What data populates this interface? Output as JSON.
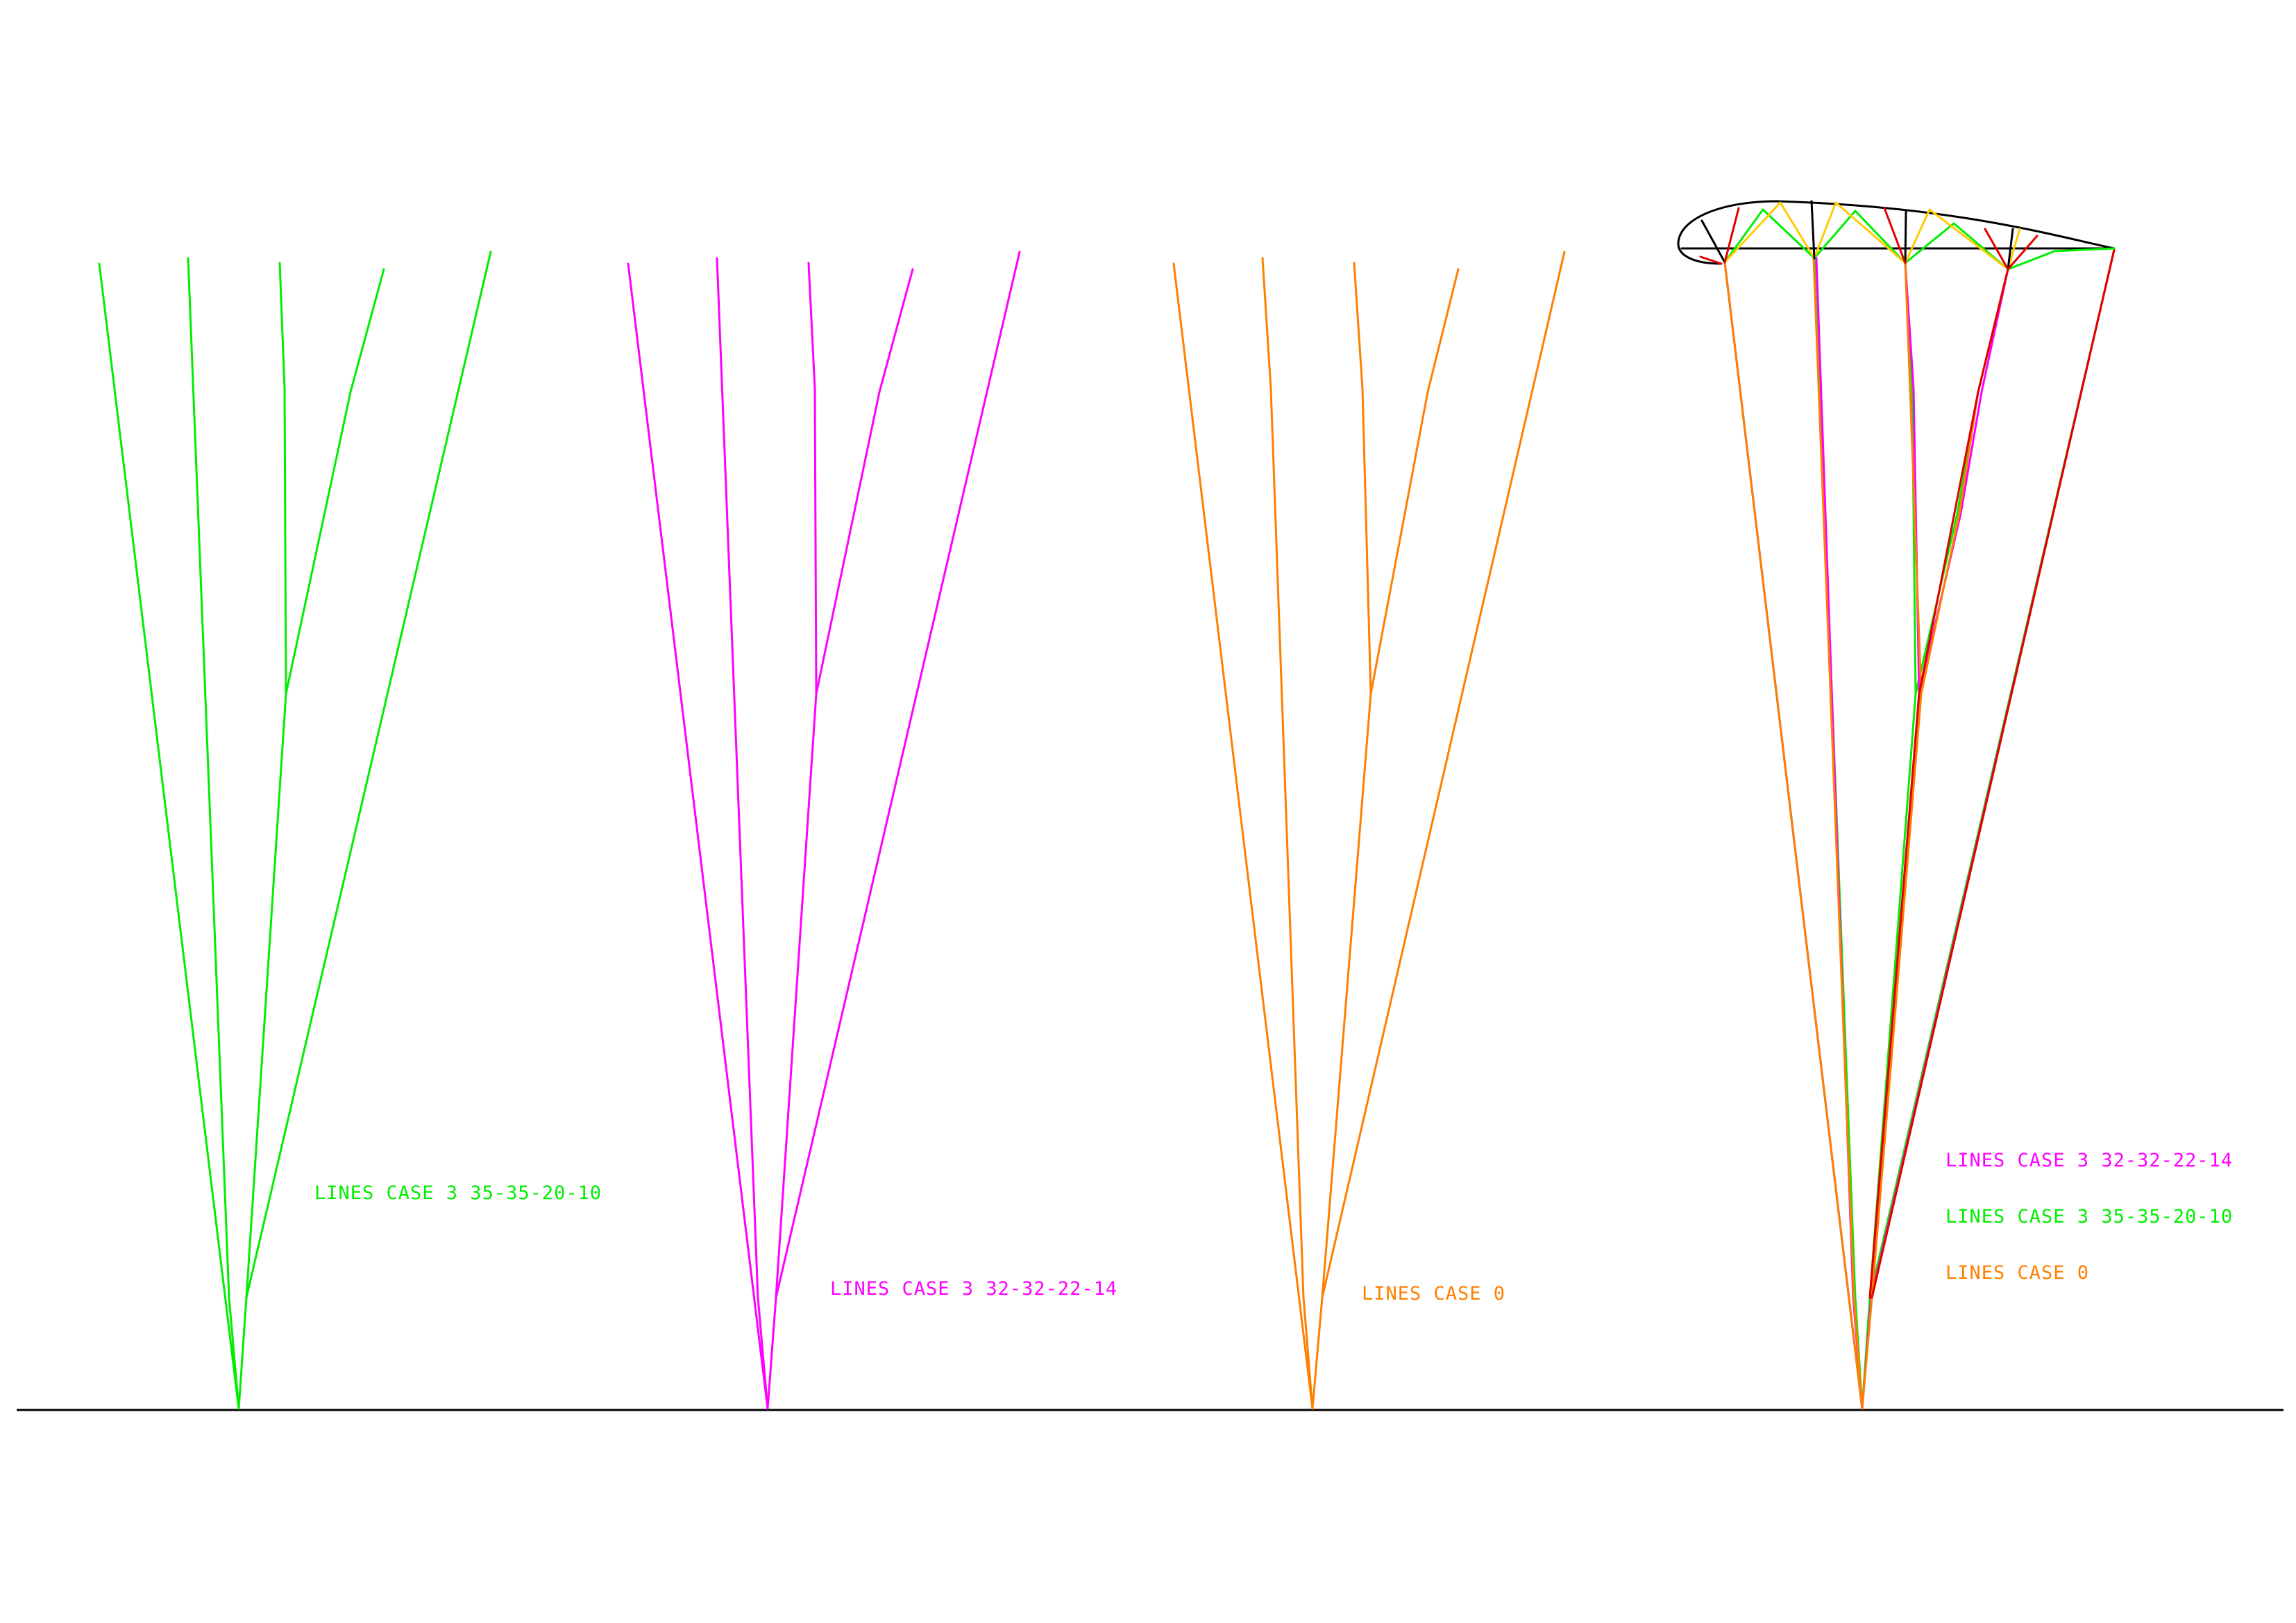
{
  "colors": {
    "case3_35": "#00ee00",
    "case3_32": "#ff00ff",
    "case0": "#ff7f00",
    "profile": "#000000",
    "profile_accent_red": "#e00000",
    "profile_accent_yellow": "#ffcc00",
    "ground": "#000000"
  },
  "labels": {
    "case3_35": "LINES CASE 3 35-35-20-10",
    "case3_32": "LINES CASE 3 32-32-22-14",
    "case0": "LINES CASE 0"
  },
  "legend": [
    {
      "text": "LINES CASE 3 32-32-22-14",
      "color_key": "case3_32"
    },
    {
      "text": "LINES CASE 3 35-35-20-10",
      "color_key": "case3_35"
    },
    {
      "text": "LINES CASE 0",
      "color_key": "case0"
    }
  ],
  "icons": {
    "profile": "airfoil-profile-icon"
  }
}
